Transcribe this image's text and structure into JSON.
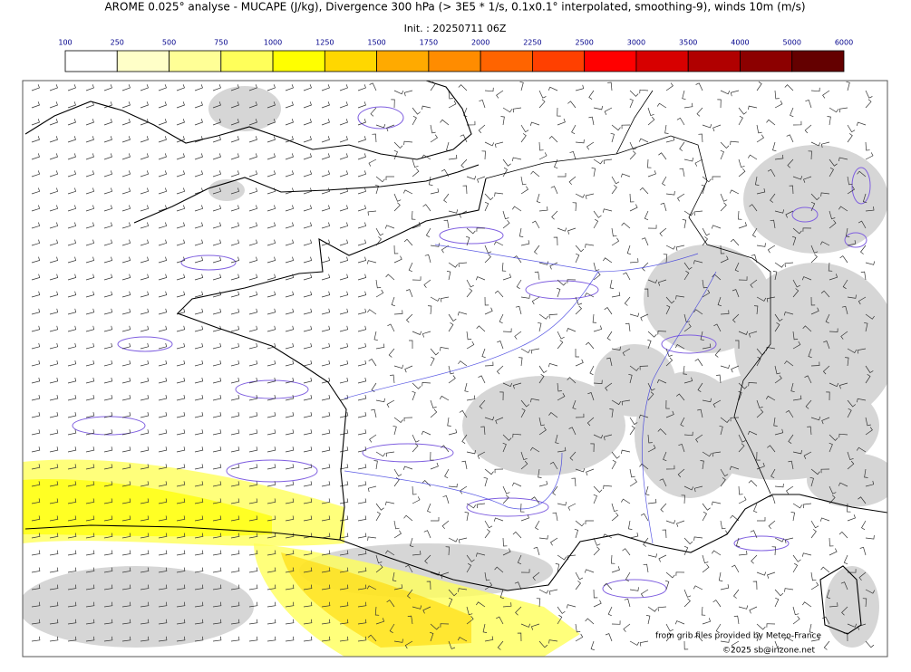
{
  "header": {
    "title": "AROME 0.025° analyse - MUCAPE (J/kg), Divergence 300 hPa (> 3E5 * 1/s, 0.1x0.1° interpolated, smoothing-9), winds 10m (m/s)",
    "init": "Init. : 20250711 06Z"
  },
  "colorbar": {
    "labels": [
      "100",
      "250",
      "500",
      "750",
      "1000",
      "1250",
      "1500",
      "1750",
      "2000",
      "2250",
      "2500",
      "3000",
      "3500",
      "4000",
      "5000",
      "6000"
    ],
    "colors": [
      "#ffffff",
      "#ffffc8",
      "#ffff96",
      "#ffff5a",
      "#ffff00",
      "#ffd700",
      "#ffaa00",
      "#ff8c00",
      "#ff6400",
      "#ff4000",
      "#ff0000",
      "#d70000",
      "#b00000",
      "#8c0000",
      "#640000"
    ]
  },
  "credits": {
    "source": "from grib files provided by Meteo-France",
    "copyright": "©2025 sb@irizone.net"
  }
}
